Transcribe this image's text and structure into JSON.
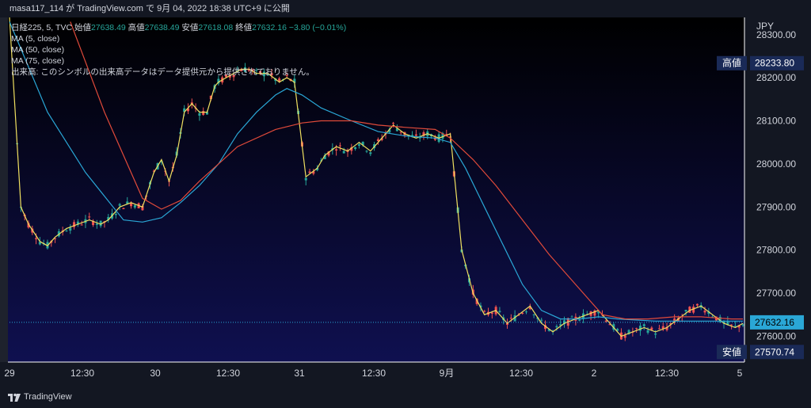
{
  "header": {
    "publish_text": "masa117_114 が TradingView.com で 9月 04, 2022 18:38 UTC+9 に公開"
  },
  "legend": {
    "symbol": "日経225, 5, TVC",
    "ohlc": [
      {
        "label": "始値",
        "value": "27638.49"
      },
      {
        "label": "高値",
        "value": "27638.49"
      },
      {
        "label": "安値",
        "value": "27618.08"
      },
      {
        "label": "終値",
        "value": "27632.16"
      }
    ],
    "change": "−3.80 (−0.01%)",
    "indicators": [
      "MA (5, close)",
      "MA (50, close)",
      "MA (75, close)"
    ],
    "volume_note": "出来高: このシンボルの出来高データはデータ提供元から提供されておりません。"
  },
  "footer": {
    "brand": "TradingView"
  },
  "colors": {
    "bg_top": "#000000",
    "bg_bottom": "#0f1050",
    "up": "#26a69a",
    "down": "#ef5350",
    "ma5": "#f0e060",
    "ma50": "#2aa7d6",
    "ma75": "#e04a3a",
    "label_bg": "#1a2a57",
    "last_price_bg": "#2aa7d6"
  },
  "chart_data": {
    "type": "line",
    "currency": "JPY",
    "ylim": [
      27540,
      28340
    ],
    "y_ticks": [
      "28300.00",
      "28200.00",
      "28100.00",
      "28000.00",
      "27900.00",
      "27800.00",
      "27700.00",
      "27600.00"
    ],
    "x_ticks": [
      "29",
      "12:30",
      "30",
      "12:30",
      "31",
      "12:30",
      "9月",
      "12:30",
      "2",
      "12:30",
      "5"
    ],
    "high_label": {
      "text": "高値",
      "value": "28233.80"
    },
    "low_label": {
      "text": "安値",
      "value": "27570.74"
    },
    "last_price": "27632.16",
    "series": [
      {
        "name": "MA (5, close)",
        "x": [
          0,
          3,
          5,
          8,
          10,
          12,
          15,
          18,
          21,
          24,
          26,
          29,
          32,
          35,
          38,
          40,
          42,
          44,
          46,
          48,
          50,
          52,
          54,
          55,
          57,
          59,
          61,
          63,
          65,
          68,
          71,
          73,
          75,
          78,
          81,
          83,
          86,
          89,
          92,
          95,
          98,
          101,
          104,
          107,
          110,
          113,
          116,
          119,
          122,
          125,
          128,
          131,
          134,
          137,
          140,
          143,
          146,
          149,
          152,
          155,
          158,
          161,
          164,
          167,
          170,
          173,
          176,
          179,
          182,
          185,
          188,
          191,
          193
        ],
        "y": [
          28340,
          27900,
          27860,
          27820,
          27810,
          27830,
          27850,
          27860,
          27870,
          27860,
          27870,
          27900,
          27910,
          27900,
          27980,
          28010,
          27960,
          28020,
          28120,
          28140,
          28120,
          28120,
          28180,
          28190,
          28200,
          28210,
          28220,
          28220,
          28210,
          28210,
          28190,
          28200,
          28190,
          27970,
          27990,
          28020,
          28040,
          28030,
          28050,
          28030,
          28060,
          28090,
          28070,
          28060,
          28070,
          28060,
          28070,
          27800,
          27700,
          27650,
          27660,
          27630,
          27650,
          27670,
          27630,
          27610,
          27630,
          27640,
          27650,
          27660,
          27630,
          27600,
          27610,
          27620,
          27610,
          27620,
          27640,
          27660,
          27670,
          27650,
          27630,
          27620,
          27630
        ]
      },
      {
        "name": "MA (50, close)",
        "x": [
          0,
          10,
          20,
          30,
          35,
          40,
          45,
          50,
          55,
          60,
          65,
          70,
          73,
          77,
          82,
          90,
          97,
          104,
          112,
          116,
          120,
          125,
          130,
          135,
          140,
          145,
          150,
          155,
          160,
          170,
          180,
          193
        ],
        "y": [
          28330,
          28120,
          27980,
          27870,
          27865,
          27875,
          27910,
          27950,
          28000,
          28070,
          28120,
          28160,
          28175,
          28160,
          28130,
          28100,
          28075,
          28065,
          28060,
          28050,
          27990,
          27900,
          27810,
          27720,
          27660,
          27640,
          27640,
          27645,
          27640,
          27635,
          27635,
          27635
        ]
      },
      {
        "name": "MA (75, close)",
        "x": [
          16,
          25,
          35,
          40,
          45,
          50,
          55,
          60,
          70,
          77,
          82,
          90,
          97,
          104,
          112,
          116,
          122,
          128,
          135,
          142,
          150,
          156,
          162,
          168,
          175,
          182,
          190,
          193
        ],
        "y": [
          28330,
          28120,
          27920,
          27895,
          27915,
          27960,
          28000,
          28040,
          28080,
          28095,
          28100,
          28100,
          28090,
          28085,
          28080,
          28060,
          28010,
          27950,
          27870,
          27790,
          27710,
          27650,
          27640,
          27640,
          27645,
          27645,
          27640,
          27640
        ]
      }
    ]
  }
}
